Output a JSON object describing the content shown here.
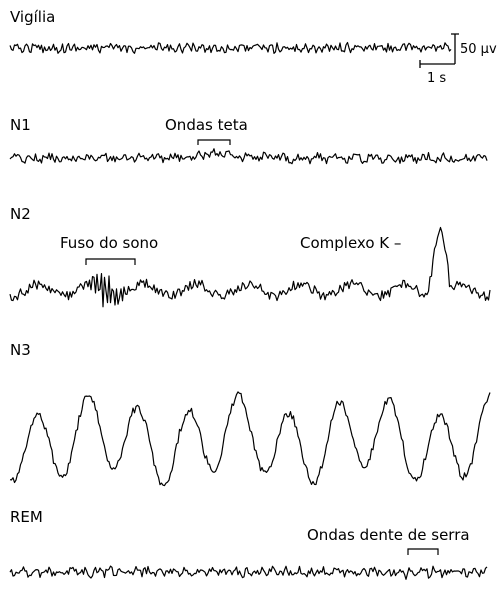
{
  "stages": [
    {
      "id": "vigilia",
      "label": "Vigília"
    },
    {
      "id": "n1",
      "label": "N1"
    },
    {
      "id": "n2",
      "label": "N2"
    },
    {
      "id": "n3",
      "label": "N3"
    },
    {
      "id": "rem",
      "label": "REM"
    }
  ],
  "annotations": {
    "theta": "Ondas teta",
    "spindle": "Fuso do sono",
    "kcomplex": "Complexo K –",
    "sawtooth": "Ondas dente de serra"
  },
  "scale_bar": {
    "amplitude": "50 µv",
    "time": "1 s"
  },
  "colors": {
    "trace": "#000000",
    "background": "#ffffff"
  }
}
